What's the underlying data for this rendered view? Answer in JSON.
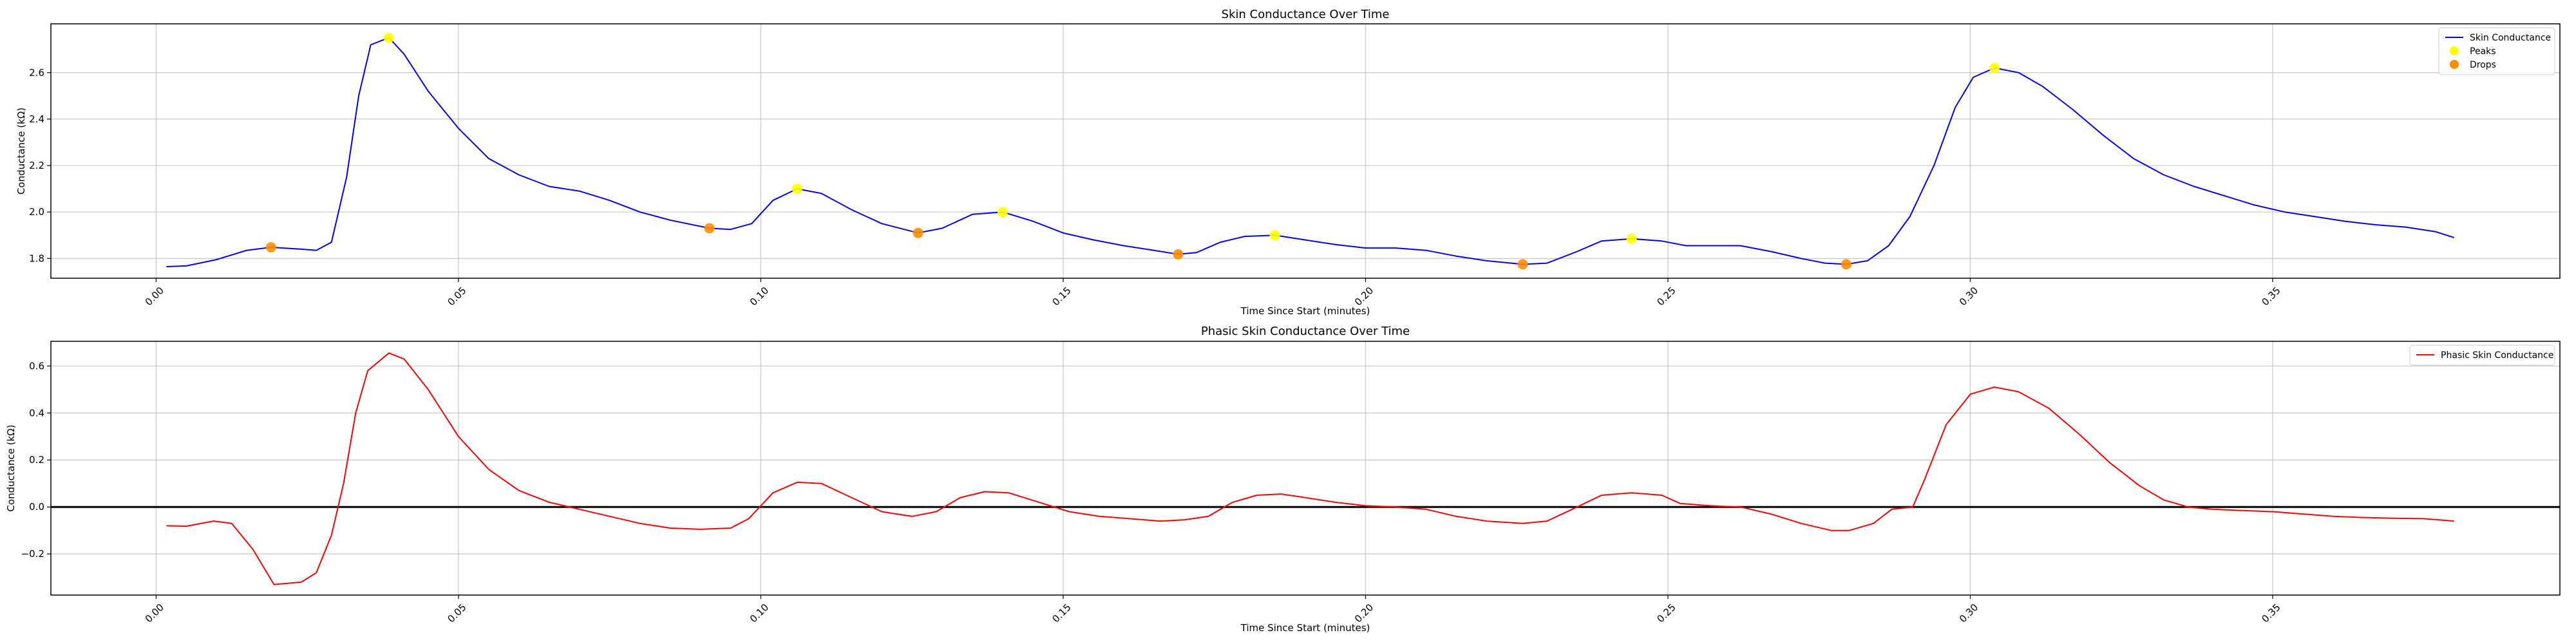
{
  "chart_data": [
    {
      "type": "line",
      "title": "Skin Conductance Over Time",
      "xlabel": "Time Since Start (minutes)",
      "ylabel": "Conductance (kΩ)",
      "xlim": [
        -0.0174,
        0.3975
      ],
      "ylim": [
        1.715,
        2.81
      ],
      "xticks": [
        0.0,
        0.05,
        0.1,
        0.15,
        0.2,
        0.25,
        0.3,
        0.35
      ],
      "xtick_labels": [
        "0.00",
        "0.05",
        "0.10",
        "0.15",
        "0.20",
        "0.25",
        "0.30",
        "0.35"
      ],
      "yticks": [
        1.8,
        2.0,
        2.2,
        2.4,
        2.6
      ],
      "ytick_labels": [
        "1.8",
        "2.0",
        "2.2",
        "2.4",
        "2.6"
      ],
      "grid": true,
      "legend_position": "top-right",
      "series": [
        {
          "name": "Skin Conductance",
          "kind": "line",
          "color": "#0000ff",
          "points": [
            [
              0.0017,
              1.765
            ],
            [
              0.005,
              1.768
            ],
            [
              0.01,
              1.795
            ],
            [
              0.015,
              1.835
            ],
            [
              0.019,
              1.848
            ],
            [
              0.024,
              1.84
            ],
            [
              0.0265,
              1.835
            ],
            [
              0.029,
              1.87
            ],
            [
              0.0315,
              2.15
            ],
            [
              0.0335,
              2.5
            ],
            [
              0.0355,
              2.72
            ],
            [
              0.0385,
              2.75
            ],
            [
              0.041,
              2.68
            ],
            [
              0.045,
              2.52
            ],
            [
              0.05,
              2.36
            ],
            [
              0.055,
              2.23
            ],
            [
              0.06,
              2.16
            ],
            [
              0.065,
              2.11
            ],
            [
              0.07,
              2.09
            ],
            [
              0.075,
              2.05
            ],
            [
              0.08,
              2.0
            ],
            [
              0.085,
              1.965
            ],
            [
              0.0915,
              1.93
            ],
            [
              0.095,
              1.925
            ],
            [
              0.0985,
              1.95
            ],
            [
              0.102,
              2.05
            ],
            [
              0.106,
              2.1
            ],
            [
              0.11,
              2.08
            ],
            [
              0.115,
              2.01
            ],
            [
              0.12,
              1.95
            ],
            [
              0.126,
              1.91
            ],
            [
              0.13,
              1.93
            ],
            [
              0.135,
              1.99
            ],
            [
              0.14,
              2.0
            ],
            [
              0.145,
              1.96
            ],
            [
              0.15,
              1.91
            ],
            [
              0.155,
              1.88
            ],
            [
              0.16,
              1.855
            ],
            [
              0.165,
              1.835
            ],
            [
              0.169,
              1.818
            ],
            [
              0.172,
              1.825
            ],
            [
              0.176,
              1.87
            ],
            [
              0.18,
              1.895
            ],
            [
              0.185,
              1.9
            ],
            [
              0.19,
              1.88
            ],
            [
              0.195,
              1.86
            ],
            [
              0.2,
              1.845
            ],
            [
              0.205,
              1.845
            ],
            [
              0.21,
              1.835
            ],
            [
              0.215,
              1.81
            ],
            [
              0.22,
              1.79
            ],
            [
              0.226,
              1.775
            ],
            [
              0.23,
              1.78
            ],
            [
              0.235,
              1.83
            ],
            [
              0.239,
              1.875
            ],
            [
              0.244,
              1.885
            ],
            [
              0.249,
              1.875
            ],
            [
              0.253,
              1.855
            ],
            [
              0.258,
              1.855
            ],
            [
              0.262,
              1.855
            ],
            [
              0.267,
              1.83
            ],
            [
              0.272,
              1.8
            ],
            [
              0.276,
              1.78
            ],
            [
              0.2795,
              1.775
            ],
            [
              0.283,
              1.79
            ],
            [
              0.2865,
              1.855
            ],
            [
              0.29,
              1.98
            ],
            [
              0.294,
              2.2
            ],
            [
              0.2975,
              2.45
            ],
            [
              0.3005,
              2.58
            ],
            [
              0.304,
              2.62
            ],
            [
              0.308,
              2.6
            ],
            [
              0.312,
              2.54
            ],
            [
              0.317,
              2.44
            ],
            [
              0.322,
              2.33
            ],
            [
              0.327,
              2.23
            ],
            [
              0.332,
              2.16
            ],
            [
              0.337,
              2.11
            ],
            [
              0.342,
              2.07
            ],
            [
              0.347,
              2.03
            ],
            [
              0.352,
              2.0
            ],
            [
              0.357,
              1.98
            ],
            [
              0.362,
              1.96
            ],
            [
              0.367,
              1.945
            ],
            [
              0.372,
              1.935
            ],
            [
              0.377,
              1.915
            ],
            [
              0.38,
              1.89
            ]
          ]
        },
        {
          "name": "Peaks",
          "kind": "scatter",
          "color": "#ffff00",
          "points": [
            [
              0.0385,
              2.75
            ],
            [
              0.106,
              2.1
            ],
            [
              0.14,
              2.0
            ],
            [
              0.185,
              1.9
            ],
            [
              0.244,
              1.885
            ],
            [
              0.304,
              2.62
            ]
          ]
        },
        {
          "name": "Drops",
          "kind": "scatter",
          "color": "#ff8c00",
          "points": [
            [
              0.019,
              1.848
            ],
            [
              0.0915,
              1.93
            ],
            [
              0.126,
              1.91
            ],
            [
              0.169,
              1.818
            ],
            [
              0.226,
              1.775
            ],
            [
              0.2795,
              1.775
            ]
          ]
        }
      ]
    },
    {
      "type": "line",
      "title": "Phasic Skin Conductance Over Time",
      "xlabel": "Time Since Start (minutes)",
      "ylabel": "Conductance (kΩ)",
      "xlim": [
        -0.0174,
        0.3975
      ],
      "ylim": [
        -0.375,
        0.705
      ],
      "xticks": [
        0.0,
        0.05,
        0.1,
        0.15,
        0.2,
        0.25,
        0.3,
        0.35
      ],
      "xtick_labels": [
        "0.00",
        "0.05",
        "0.10",
        "0.15",
        "0.20",
        "0.25",
        "0.30",
        "0.35"
      ],
      "yticks": [
        -0.2,
        0.0,
        0.2,
        0.4,
        0.6
      ],
      "ytick_labels": [
        "−0.2",
        "0.0",
        "0.2",
        "0.4",
        "0.6"
      ],
      "grid": true,
      "legend_position": "top-right",
      "hline": 0,
      "series": [
        {
          "name": "Phasic Skin Conductance",
          "kind": "line",
          "color": "#ff0000",
          "points": [
            [
              0.0017,
              -0.08
            ],
            [
              0.005,
              -0.082
            ],
            [
              0.0095,
              -0.06
            ],
            [
              0.0125,
              -0.07
            ],
            [
              0.016,
              -0.18
            ],
            [
              0.0195,
              -0.33
            ],
            [
              0.024,
              -0.32
            ],
            [
              0.0265,
              -0.28
            ],
            [
              0.029,
              -0.12
            ],
            [
              0.031,
              0.1
            ],
            [
              0.033,
              0.4
            ],
            [
              0.035,
              0.58
            ],
            [
              0.0385,
              0.655
            ],
            [
              0.041,
              0.63
            ],
            [
              0.045,
              0.5
            ],
            [
              0.05,
              0.3
            ],
            [
              0.055,
              0.16
            ],
            [
              0.06,
              0.07
            ],
            [
              0.065,
              0.02
            ],
            [
              0.07,
              -0.01
            ],
            [
              0.075,
              -0.04
            ],
            [
              0.08,
              -0.07
            ],
            [
              0.085,
              -0.09
            ],
            [
              0.09,
              -0.095
            ],
            [
              0.095,
              -0.09
            ],
            [
              0.098,
              -0.05
            ],
            [
              0.102,
              0.06
            ],
            [
              0.106,
              0.105
            ],
            [
              0.11,
              0.1
            ],
            [
              0.115,
              0.04
            ],
            [
              0.12,
              -0.02
            ],
            [
              0.125,
              -0.04
            ],
            [
              0.129,
              -0.02
            ],
            [
              0.133,
              0.04
            ],
            [
              0.137,
              0.065
            ],
            [
              0.141,
              0.06
            ],
            [
              0.146,
              0.02
            ],
            [
              0.151,
              -0.02
            ],
            [
              0.156,
              -0.04
            ],
            [
              0.161,
              -0.05
            ],
            [
              0.166,
              -0.06
            ],
            [
              0.17,
              -0.055
            ],
            [
              0.174,
              -0.04
            ],
            [
              0.178,
              0.02
            ],
            [
              0.182,
              0.05
            ],
            [
              0.186,
              0.055
            ],
            [
              0.19,
              0.04
            ],
            [
              0.195,
              0.02
            ],
            [
              0.2,
              0.005
            ],
            [
              0.205,
              0.0
            ],
            [
              0.21,
              -0.01
            ],
            [
              0.215,
              -0.04
            ],
            [
              0.22,
              -0.06
            ],
            [
              0.226,
              -0.07
            ],
            [
              0.23,
              -0.06
            ],
            [
              0.235,
              0.0
            ],
            [
              0.239,
              0.05
            ],
            [
              0.244,
              0.06
            ],
            [
              0.249,
              0.05
            ],
            [
              0.252,
              0.015
            ],
            [
              0.257,
              0.005
            ],
            [
              0.262,
              0.0
            ],
            [
              0.267,
              -0.03
            ],
            [
              0.272,
              -0.07
            ],
            [
              0.277,
              -0.1
            ],
            [
              0.28,
              -0.1
            ],
            [
              0.284,
              -0.07
            ],
            [
              0.287,
              -0.01
            ],
            [
              0.2905,
              0.0
            ],
            [
              0.2925,
              0.12
            ],
            [
              0.296,
              0.35
            ],
            [
              0.3,
              0.48
            ],
            [
              0.304,
              0.51
            ],
            [
              0.308,
              0.49
            ],
            [
              0.313,
              0.42
            ],
            [
              0.318,
              0.31
            ],
            [
              0.323,
              0.19
            ],
            [
              0.328,
              0.09
            ],
            [
              0.332,
              0.03
            ],
            [
              0.336,
              0.0
            ],
            [
              0.34,
              -0.01
            ],
            [
              0.345,
              -0.015
            ],
            [
              0.35,
              -0.02
            ],
            [
              0.355,
              -0.03
            ],
            [
              0.36,
              -0.04
            ],
            [
              0.365,
              -0.045
            ],
            [
              0.37,
              -0.048
            ],
            [
              0.375,
              -0.05
            ],
            [
              0.38,
              -0.06
            ]
          ]
        }
      ]
    }
  ]
}
